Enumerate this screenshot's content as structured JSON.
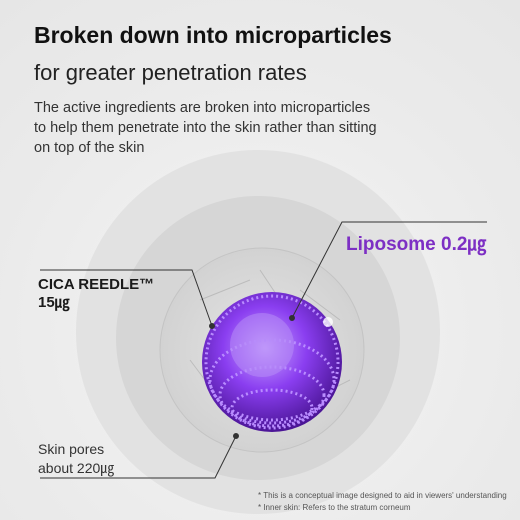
{
  "title": "Broken down into microparticles",
  "subtitle": "for greater penetration rates",
  "description": [
    "The active ingredients are broken into microparticles",
    "to help them penetrate into the skin rather than sitting",
    "on top of the skin"
  ],
  "labels": {
    "liposome": "Liposome 0.2㎍",
    "cica": [
      "CICA REEDLE™",
      "15㎍"
    ],
    "pores": [
      "Skin pores",
      "about 220㎍"
    ]
  },
  "footnotes": [
    "* This is a conceptual image designed to aid in viewers' understanding",
    "* Inner skin: Refers to the stratum corneum"
  ]
}
